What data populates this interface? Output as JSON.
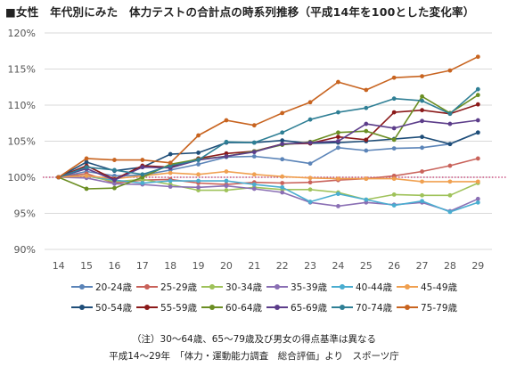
{
  "title": "■女性　年代別にみた　体力テストの合計点の時系列推移（平成14年を100とした変化率）",
  "notes": [
    "（注）30〜64歳、65〜79歳及び男女の得点基準は異なる",
    "平成14〜29年　「体力・運動能力調査　総合評価」より　スポーツ庁"
  ],
  "chart_data": {
    "type": "line",
    "title": "■女性　年代別にみた　体力テストの合計点の時系列推移（平成14年を100とした変化率）",
    "x": [
      14,
      15,
      16,
      17,
      18,
      19,
      20,
      21,
      22,
      23,
      24,
      25,
      26,
      27,
      28,
      29
    ],
    "x_tick_labels": [
      "14",
      "15",
      "16",
      "17",
      "18",
      "19",
      "20",
      "21",
      "22",
      "23",
      "24",
      "25",
      "26",
      "27",
      "28",
      "29"
    ],
    "y_tick_labels": [
      "90%",
      "95%",
      "100%",
      "105%",
      "110%",
      "115%",
      "120%"
    ],
    "ylim": [
      90,
      120
    ],
    "grid": true,
    "reference_line": 100,
    "legend_position": "bottom",
    "series": [
      {
        "name": "20-24歳",
        "color": "#5b84b8",
        "values": [
          100,
          100.8,
          100.2,
          100.3,
          101.0,
          101.8,
          102.8,
          102.9,
          102.5,
          101.9,
          104.1,
          103.7,
          104.0,
          104.1,
          104.6,
          106.2
        ]
      },
      {
        "name": "25-29歳",
        "color": "#c9625a",
        "values": [
          100,
          100.5,
          99.2,
          99.6,
          99.7,
          99.2,
          99.0,
          99.3,
          99.2,
          99.3,
          99.6,
          99.8,
          100.2,
          100.8,
          101.6,
          102.6
        ]
      },
      {
        "name": "30-34歳",
        "color": "#9fc25a",
        "values": [
          100,
          100.2,
          99.4,
          99.7,
          99.0,
          98.2,
          98.2,
          98.6,
          98.3,
          98.3,
          97.9,
          96.9,
          97.6,
          97.5,
          97.5,
          99.2
        ]
      },
      {
        "name": "35-39歳",
        "color": "#8a6fb4",
        "values": [
          100,
          99.9,
          99.1,
          99.0,
          98.7,
          98.6,
          98.8,
          98.4,
          97.9,
          96.5,
          96.0,
          96.5,
          96.2,
          96.5,
          95.3,
          97.0
        ]
      },
      {
        "name": "40-44歳",
        "color": "#4aadd0",
        "values": [
          100,
          100.2,
          99.6,
          99.2,
          99.5,
          99.5,
          99.5,
          99.0,
          98.6,
          96.6,
          97.7,
          96.9,
          96.1,
          96.7,
          95.2,
          96.5
        ]
      },
      {
        "name": "45-49歳",
        "color": "#f0a050",
        "values": [
          100,
          100.2,
          99.8,
          100.2,
          100.6,
          100.4,
          100.8,
          100.4,
          100.1,
          99.9,
          99.8,
          99.8,
          99.8,
          99.4,
          99.4,
          99.4
        ]
      },
      {
        "name": "50-54歳",
        "color": "#1f4e79",
        "values": [
          100,
          102.1,
          100.9,
          101.4,
          103.2,
          103.4,
          104.8,
          104.8,
          105.1,
          104.7,
          104.8,
          105.0,
          105.3,
          105.6,
          104.6,
          106.2
        ]
      },
      {
        "name": "55-59歳",
        "color": "#8b1a1a",
        "values": [
          100,
          101.6,
          99.7,
          101.6,
          101.4,
          102.6,
          103.3,
          103.6,
          104.6,
          104.7,
          105.6,
          105.2,
          109.0,
          109.3,
          108.8,
          110.1
        ]
      },
      {
        "name": "60-64歳",
        "color": "#6b8e23",
        "values": [
          100,
          98.4,
          98.5,
          100.0,
          101.8,
          102.5,
          102.9,
          103.6,
          104.5,
          104.9,
          106.2,
          106.4,
          105.2,
          111.2,
          108.9,
          111.4
        ]
      },
      {
        "name": "65-69歳",
        "color": "#5c3d8a",
        "values": [
          100,
          101.2,
          99.6,
          101.4,
          101.3,
          102.4,
          102.9,
          103.5,
          104.6,
          104.8,
          105.0,
          107.4,
          106.8,
          107.8,
          107.4,
          107.9
        ]
      },
      {
        "name": "70-74歳",
        "color": "#2f7f95",
        "values": [
          100,
          101.4,
          101.0,
          100.4,
          101.6,
          102.4,
          104.9,
          104.8,
          106.2,
          108.0,
          109.0,
          109.6,
          110.9,
          110.6,
          108.8,
          112.2
        ]
      },
      {
        "name": "75-79歳",
        "color": "#c86420",
        "values": [
          100,
          102.6,
          102.4,
          102.4,
          102.0,
          105.8,
          107.9,
          107.2,
          108.9,
          110.4,
          113.2,
          112.1,
          113.8,
          114.0,
          114.8,
          116.7
        ]
      }
    ]
  }
}
